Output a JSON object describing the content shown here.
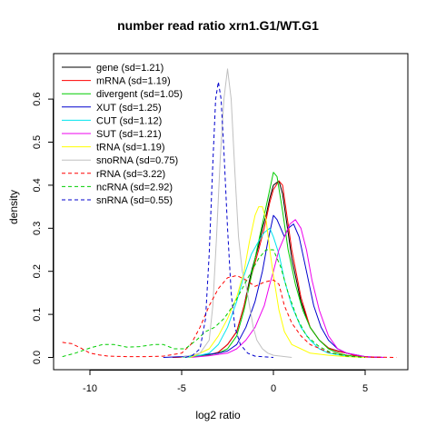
{
  "chart_data": {
    "type": "line",
    "title": "number read ratio xrn1.G1/WT.G1",
    "xlabel": "log2 ratio",
    "ylabel": "density",
    "xlim": [
      -11.5,
      7.5
    ],
    "ylim": [
      -0.01,
      0.685
    ],
    "xticks": [
      -10,
      -5,
      0,
      5
    ],
    "yticks": [
      0.0,
      0.1,
      0.2,
      0.3,
      0.4,
      0.5,
      0.6
    ],
    "grid": false,
    "legend_position": "top-left",
    "series": [
      {
        "name": "gene (sd=1.21)",
        "color": "#000000",
        "dash": "solid",
        "points": [
          [
            -5.5,
            0
          ],
          [
            -4.5,
            0.002
          ],
          [
            -3.5,
            0.006
          ],
          [
            -3,
            0.012
          ],
          [
            -2.5,
            0.03
          ],
          [
            -2,
            0.06
          ],
          [
            -1.6,
            0.12
          ],
          [
            -1.2,
            0.2
          ],
          [
            -0.8,
            0.26
          ],
          [
            -0.6,
            0.3
          ],
          [
            -0.4,
            0.33
          ],
          [
            -0.2,
            0.37
          ],
          [
            0,
            0.4
          ],
          [
            0.3,
            0.41
          ],
          [
            0.5,
            0.38
          ],
          [
            0.8,
            0.29
          ],
          [
            1,
            0.23
          ],
          [
            1.5,
            0.13
          ],
          [
            2,
            0.07
          ],
          [
            2.5,
            0.04
          ],
          [
            3,
            0.022
          ],
          [
            3.5,
            0.015
          ],
          [
            4,
            0.01
          ],
          [
            4.5,
            0.004
          ],
          [
            5,
            0.001
          ],
          [
            6,
            0
          ]
        ]
      },
      {
        "name": "mRNA (sd=1.19)",
        "color": "#ff0000",
        "dash": "solid",
        "points": [
          [
            -5.5,
            0
          ],
          [
            -4.5,
            0.002
          ],
          [
            -3.5,
            0.006
          ],
          [
            -3,
            0.012
          ],
          [
            -2.5,
            0.03
          ],
          [
            -2,
            0.06
          ],
          [
            -1.6,
            0.12
          ],
          [
            -1.2,
            0.19
          ],
          [
            -0.8,
            0.25
          ],
          [
            -0.5,
            0.3
          ],
          [
            -0.2,
            0.36
          ],
          [
            0,
            0.39
          ],
          [
            0.3,
            0.41
          ],
          [
            0.5,
            0.4
          ],
          [
            0.8,
            0.31
          ],
          [
            1,
            0.25
          ],
          [
            1.5,
            0.14
          ],
          [
            2,
            0.07
          ],
          [
            2.5,
            0.04
          ],
          [
            3,
            0.022
          ],
          [
            3.5,
            0.014
          ],
          [
            4,
            0.01
          ],
          [
            4.5,
            0.004
          ],
          [
            5,
            0.001
          ],
          [
            6,
            0
          ]
        ]
      },
      {
        "name": "divergent (sd=1.05)",
        "color": "#00cd00",
        "dash": "solid",
        "points": [
          [
            -5,
            0
          ],
          [
            -4,
            0.003
          ],
          [
            -3,
            0.01
          ],
          [
            -2.5,
            0.02
          ],
          [
            -2,
            0.05
          ],
          [
            -1.6,
            0.11
          ],
          [
            -1.2,
            0.19
          ],
          [
            -0.8,
            0.27
          ],
          [
            -0.5,
            0.33
          ],
          [
            -0.2,
            0.39
          ],
          [
            0,
            0.43
          ],
          [
            0.2,
            0.42
          ],
          [
            0.5,
            0.34
          ],
          [
            0.8,
            0.25
          ],
          [
            1.2,
            0.17
          ],
          [
            1.6,
            0.11
          ],
          [
            2,
            0.07
          ],
          [
            2.5,
            0.04
          ],
          [
            3,
            0.02
          ],
          [
            3.5,
            0.01
          ],
          [
            4,
            0.005
          ],
          [
            5,
            0
          ]
        ]
      },
      {
        "name": "XUT (sd=1.25)",
        "color": "#0000cd",
        "dash": "solid",
        "points": [
          [
            -6,
            0
          ],
          [
            -5,
            0.002
          ],
          [
            -4,
            0.005
          ],
          [
            -3,
            0.01
          ],
          [
            -2.5,
            0.015
          ],
          [
            -2,
            0.03
          ],
          [
            -1.5,
            0.07
          ],
          [
            -1,
            0.13
          ],
          [
            -0.6,
            0.2
          ],
          [
            -0.3,
            0.27
          ],
          [
            0,
            0.33
          ],
          [
            0.2,
            0.32
          ],
          [
            0.4,
            0.3
          ],
          [
            0.6,
            0.28
          ],
          [
            0.8,
            0.3
          ],
          [
            1.1,
            0.31
          ],
          [
            1.4,
            0.28
          ],
          [
            1.8,
            0.2
          ],
          [
            2.2,
            0.12
          ],
          [
            2.6,
            0.07
          ],
          [
            3,
            0.04
          ],
          [
            3.5,
            0.02
          ],
          [
            4,
            0.01
          ],
          [
            5,
            0.002
          ],
          [
            6,
            0
          ]
        ]
      },
      {
        "name": "CUT (sd=1.12)",
        "color": "#00e5ee",
        "dash": "solid",
        "points": [
          [
            -5,
            0
          ],
          [
            -4,
            0.005
          ],
          [
            -3.5,
            0.01
          ],
          [
            -3,
            0.03
          ],
          [
            -2.5,
            0.07
          ],
          [
            -2,
            0.13
          ],
          [
            -1.6,
            0.19
          ],
          [
            -1.2,
            0.24
          ],
          [
            -0.8,
            0.27
          ],
          [
            -0.5,
            0.29
          ],
          [
            -0.2,
            0.3
          ],
          [
            0,
            0.28
          ],
          [
            0.3,
            0.24
          ],
          [
            0.6,
            0.18
          ],
          [
            1,
            0.12
          ],
          [
            1.5,
            0.07
          ],
          [
            2,
            0.04
          ],
          [
            2.5,
            0.02
          ],
          [
            3,
            0.01
          ],
          [
            4,
            0.003
          ],
          [
            5,
            0
          ]
        ]
      },
      {
        "name": "SUT (sd=1.21)",
        "color": "#ee00ee",
        "dash": "solid",
        "points": [
          [
            -4.5,
            0
          ],
          [
            -3.5,
            0.004
          ],
          [
            -2.5,
            0.01
          ],
          [
            -2,
            0.02
          ],
          [
            -1.5,
            0.04
          ],
          [
            -1,
            0.07
          ],
          [
            -0.5,
            0.12
          ],
          [
            -0.2,
            0.17
          ],
          [
            0,
            0.2
          ],
          [
            0.3,
            0.25
          ],
          [
            0.6,
            0.28
          ],
          [
            0.9,
            0.31
          ],
          [
            1.2,
            0.32
          ],
          [
            1.5,
            0.3
          ],
          [
            1.8,
            0.25
          ],
          [
            2.1,
            0.18
          ],
          [
            2.5,
            0.11
          ],
          [
            3,
            0.05
          ],
          [
            3.5,
            0.02
          ],
          [
            4,
            0.01
          ],
          [
            5,
            0.002
          ],
          [
            6,
            0
          ]
        ]
      },
      {
        "name": "tRNA (sd=1.19)",
        "color": "#ffff00",
        "dash": "solid",
        "points": [
          [
            -4.5,
            0
          ],
          [
            -4,
            0.01
          ],
          [
            -3.5,
            0.02
          ],
          [
            -3,
            0.05
          ],
          [
            -2.5,
            0.09
          ],
          [
            -2,
            0.14
          ],
          [
            -1.6,
            0.2
          ],
          [
            -1.3,
            0.27
          ],
          [
            -1,
            0.33
          ],
          [
            -0.8,
            0.35
          ],
          [
            -0.6,
            0.35
          ],
          [
            -0.4,
            0.32
          ],
          [
            -0.2,
            0.25
          ],
          [
            0,
            0.19
          ],
          [
            0.3,
            0.11
          ],
          [
            0.6,
            0.06
          ],
          [
            1,
            0.03
          ],
          [
            1.5,
            0.02
          ],
          [
            2,
            0.01
          ],
          [
            3,
            0.005
          ],
          [
            4,
            0.002
          ],
          [
            5,
            0
          ]
        ]
      },
      {
        "name": "snoRNA (sd=0.75)",
        "color": "#c0c0c0",
        "dash": "solid",
        "points": [
          [
            -5,
            0
          ],
          [
            -4.5,
            0.005
          ],
          [
            -4,
            0.01
          ],
          [
            -3.5,
            0.04
          ],
          [
            -3.3,
            0.12
          ],
          [
            -3.1,
            0.28
          ],
          [
            -2.9,
            0.46
          ],
          [
            -2.7,
            0.6
          ],
          [
            -2.5,
            0.67
          ],
          [
            -2.3,
            0.6
          ],
          [
            -2.1,
            0.43
          ],
          [
            -1.9,
            0.28
          ],
          [
            -1.7,
            0.2
          ],
          [
            -1.5,
            0.17
          ],
          [
            -1.3,
            0.12
          ],
          [
            -1.1,
            0.07
          ],
          [
            -0.9,
            0.04
          ],
          [
            -0.6,
            0.02
          ],
          [
            -0.3,
            0.01
          ],
          [
            0,
            0.005
          ],
          [
            1,
            0
          ]
        ]
      },
      {
        "name": "rRNA (sd=3.22)",
        "color": "#ff0000",
        "dash": "dashed",
        "points": [
          [
            -11.5,
            0.035
          ],
          [
            -11,
            0.032
          ],
          [
            -10.5,
            0.022
          ],
          [
            -10,
            0.01
          ],
          [
            -9.5,
            0.006
          ],
          [
            -9,
            0.003
          ],
          [
            -8,
            0.002
          ],
          [
            -7,
            0.002
          ],
          [
            -6,
            0.003
          ],
          [
            -5,
            0.01
          ],
          [
            -4.5,
            0.03
          ],
          [
            -4,
            0.07
          ],
          [
            -3.5,
            0.12
          ],
          [
            -3,
            0.16
          ],
          [
            -2.5,
            0.185
          ],
          [
            -2,
            0.19
          ],
          [
            -1.5,
            0.18
          ],
          [
            -1,
            0.165
          ],
          [
            -0.5,
            0.175
          ],
          [
            0,
            0.18
          ],
          [
            0.3,
            0.17
          ],
          [
            0.6,
            0.12
          ],
          [
            1,
            0.08
          ],
          [
            1.5,
            0.05
          ],
          [
            2,
            0.03
          ],
          [
            3,
            0.012
          ],
          [
            4,
            0.004
          ],
          [
            5,
            0.001
          ],
          [
            6.7,
            0
          ]
        ]
      },
      {
        "name": "ncRNA (sd=2.92)",
        "color": "#00cd00",
        "dash": "dashed",
        "points": [
          [
            -11.5,
            0.002
          ],
          [
            -10.8,
            0.01
          ],
          [
            -10,
            0.022
          ],
          [
            -9.3,
            0.03
          ],
          [
            -8.7,
            0.03
          ],
          [
            -8,
            0.024
          ],
          [
            -7.3,
            0.025
          ],
          [
            -6.5,
            0.03
          ],
          [
            -6,
            0.03
          ],
          [
            -5.4,
            0.02
          ],
          [
            -4.8,
            0.02
          ],
          [
            -4.2,
            0.04
          ],
          [
            -3.7,
            0.06
          ],
          [
            -3.2,
            0.07
          ],
          [
            -2.7,
            0.09
          ],
          [
            -2.2,
            0.12
          ],
          [
            -1.7,
            0.16
          ],
          [
            -1.2,
            0.2
          ],
          [
            -0.8,
            0.23
          ],
          [
            -0.4,
            0.25
          ],
          [
            0,
            0.25
          ],
          [
            0.4,
            0.21
          ],
          [
            0.8,
            0.15
          ],
          [
            1.3,
            0.09
          ],
          [
            1.8,
            0.05
          ],
          [
            2.5,
            0.025
          ],
          [
            3.2,
            0.01
          ],
          [
            4,
            0.003
          ],
          [
            5,
            0
          ]
        ]
      },
      {
        "name": "snRNA (sd=0.55)",
        "color": "#0000cd",
        "dash": "dashed",
        "points": [
          [
            -4.8,
            0
          ],
          [
            -4.4,
            0.005
          ],
          [
            -4,
            0.02
          ],
          [
            -3.7,
            0.09
          ],
          [
            -3.5,
            0.24
          ],
          [
            -3.3,
            0.45
          ],
          [
            -3.15,
            0.6
          ],
          [
            -3,
            0.64
          ],
          [
            -2.85,
            0.6
          ],
          [
            -2.7,
            0.48
          ],
          [
            -2.5,
            0.3
          ],
          [
            -2.3,
            0.15
          ],
          [
            -2.1,
            0.07
          ],
          [
            -1.8,
            0.03
          ],
          [
            -1.4,
            0.01
          ],
          [
            -1,
            0.003
          ],
          [
            0,
            0
          ]
        ]
      }
    ]
  }
}
